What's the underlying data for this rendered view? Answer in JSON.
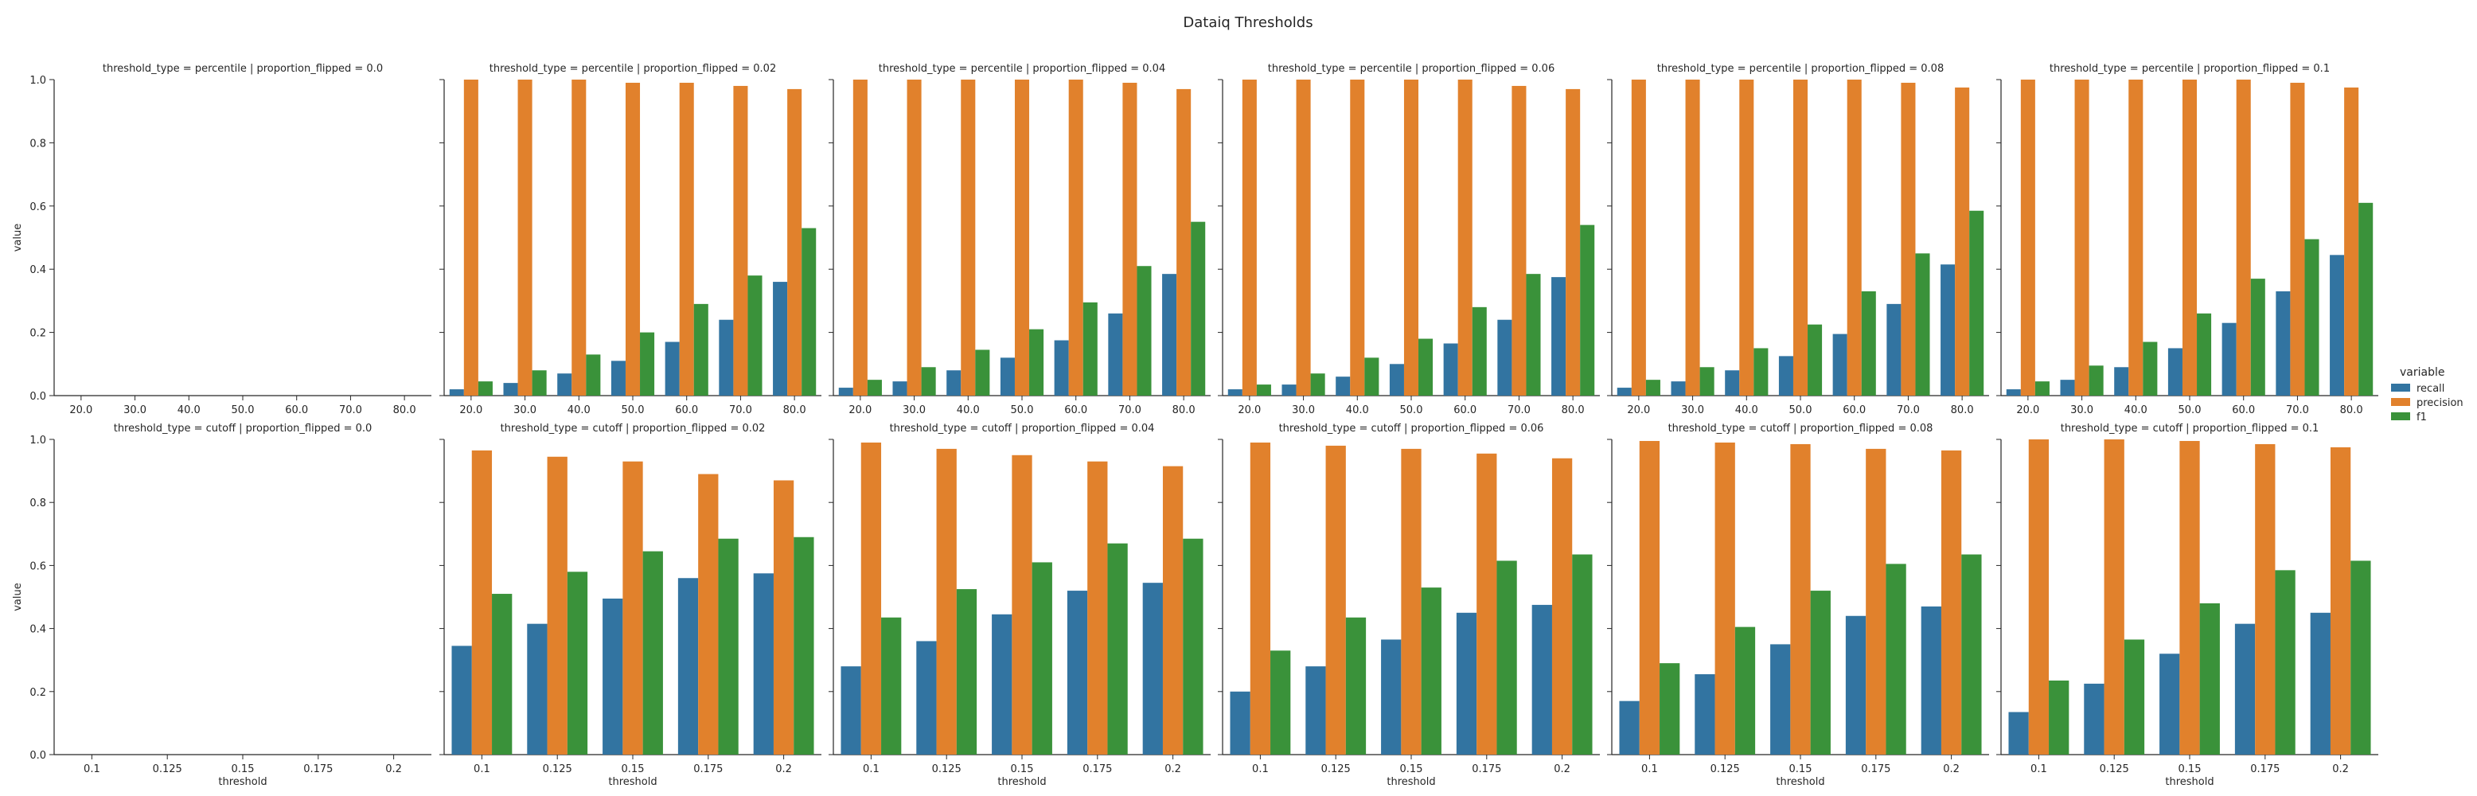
{
  "figure": {
    "title": "Dataiq Thresholds"
  },
  "legend": {
    "title": "variable",
    "placement": "right",
    "entries": [
      "recall",
      "precision",
      "f1"
    ]
  },
  "colors": {
    "recall": "#3274a1",
    "precision": "#e1812c",
    "f1": "#3a923a"
  },
  "chart_data": [
    {
      "type": "bar",
      "title": "threshold_type = percentile | proportion_flipped = 0.0",
      "xlabel": "",
      "ylabel": "value",
      "ylim": [
        0,
        1
      ],
      "categories": [
        "20.0",
        "30.0",
        "40.0",
        "50.0",
        "60.0",
        "70.0",
        "80.0"
      ],
      "series": []
    },
    {
      "type": "bar",
      "title": "threshold_type = percentile | proportion_flipped = 0.02",
      "xlabel": "",
      "ylabel": "",
      "ylim": [
        0,
        1
      ],
      "categories": [
        "20.0",
        "30.0",
        "40.0",
        "50.0",
        "60.0",
        "70.0",
        "80.0"
      ],
      "series": [
        {
          "name": "recall",
          "values": [
            0.02,
            0.04,
            0.07,
            0.11,
            0.17,
            0.24,
            0.36
          ]
        },
        {
          "name": "precision",
          "values": [
            1.0,
            1.0,
            1.0,
            0.99,
            0.99,
            0.98,
            0.97
          ]
        },
        {
          "name": "f1",
          "values": [
            0.045,
            0.08,
            0.13,
            0.2,
            0.29,
            0.38,
            0.53
          ]
        }
      ]
    },
    {
      "type": "bar",
      "title": "threshold_type = percentile | proportion_flipped = 0.04",
      "xlabel": "",
      "ylabel": "",
      "ylim": [
        0,
        1
      ],
      "categories": [
        "20.0",
        "30.0",
        "40.0",
        "50.0",
        "60.0",
        "70.0",
        "80.0"
      ],
      "series": [
        {
          "name": "recall",
          "values": [
            0.025,
            0.045,
            0.08,
            0.12,
            0.175,
            0.26,
            0.385
          ]
        },
        {
          "name": "precision",
          "values": [
            1.0,
            1.0,
            1.0,
            1.0,
            1.0,
            0.99,
            0.97
          ]
        },
        {
          "name": "f1",
          "values": [
            0.05,
            0.09,
            0.145,
            0.21,
            0.295,
            0.41,
            0.55
          ]
        }
      ]
    },
    {
      "type": "bar",
      "title": "threshold_type = percentile | proportion_flipped = 0.06",
      "xlabel": "",
      "ylabel": "",
      "ylim": [
        0,
        1
      ],
      "categories": [
        "20.0",
        "30.0",
        "40.0",
        "50.0",
        "60.0",
        "70.0",
        "80.0"
      ],
      "series": [
        {
          "name": "recall",
          "values": [
            0.02,
            0.035,
            0.06,
            0.1,
            0.165,
            0.24,
            0.375
          ]
        },
        {
          "name": "precision",
          "values": [
            1.0,
            1.0,
            1.0,
            1.0,
            1.0,
            0.98,
            0.97
          ]
        },
        {
          "name": "f1",
          "values": [
            0.035,
            0.07,
            0.12,
            0.18,
            0.28,
            0.385,
            0.54
          ]
        }
      ]
    },
    {
      "type": "bar",
      "title": "threshold_type = percentile | proportion_flipped = 0.08",
      "xlabel": "",
      "ylabel": "",
      "ylim": [
        0,
        1
      ],
      "categories": [
        "20.0",
        "30.0",
        "40.0",
        "50.0",
        "60.0",
        "70.0",
        "80.0"
      ],
      "series": [
        {
          "name": "recall",
          "values": [
            0.025,
            0.045,
            0.08,
            0.125,
            0.195,
            0.29,
            0.415
          ]
        },
        {
          "name": "precision",
          "values": [
            1.0,
            1.0,
            1.0,
            1.0,
            1.0,
            0.99,
            0.975
          ]
        },
        {
          "name": "f1",
          "values": [
            0.05,
            0.09,
            0.15,
            0.225,
            0.33,
            0.45,
            0.585
          ]
        }
      ]
    },
    {
      "type": "bar",
      "title": "threshold_type = percentile | proportion_flipped = 0.1",
      "xlabel": "",
      "ylabel": "",
      "ylim": [
        0,
        1
      ],
      "categories": [
        "20.0",
        "30.0",
        "40.0",
        "50.0",
        "60.0",
        "70.0",
        "80.0"
      ],
      "series": [
        {
          "name": "recall",
          "values": [
            0.02,
            0.05,
            0.09,
            0.15,
            0.23,
            0.33,
            0.445
          ]
        },
        {
          "name": "precision",
          "values": [
            1.0,
            1.0,
            1.0,
            1.0,
            1.0,
            0.99,
            0.975
          ]
        },
        {
          "name": "f1",
          "values": [
            0.045,
            0.095,
            0.17,
            0.26,
            0.37,
            0.495,
            0.61
          ]
        }
      ]
    },
    {
      "type": "bar",
      "title": "threshold_type = cutoff | proportion_flipped = 0.0",
      "xlabel": "threshold",
      "ylabel": "value",
      "ylim": [
        0,
        1
      ],
      "categories": [
        "0.1",
        "0.125",
        "0.15",
        "0.175",
        "0.2"
      ],
      "series": []
    },
    {
      "type": "bar",
      "title": "threshold_type = cutoff | proportion_flipped = 0.02",
      "xlabel": "threshold",
      "ylabel": "",
      "ylim": [
        0,
        1
      ],
      "categories": [
        "0.1",
        "0.125",
        "0.15",
        "0.175",
        "0.2"
      ],
      "series": [
        {
          "name": "recall",
          "values": [
            0.345,
            0.415,
            0.495,
            0.56,
            0.575
          ]
        },
        {
          "name": "precision",
          "values": [
            0.965,
            0.945,
            0.93,
            0.89,
            0.87
          ]
        },
        {
          "name": "f1",
          "values": [
            0.51,
            0.58,
            0.645,
            0.685,
            0.69
          ]
        }
      ]
    },
    {
      "type": "bar",
      "title": "threshold_type = cutoff | proportion_flipped = 0.04",
      "xlabel": "threshold",
      "ylabel": "",
      "ylim": [
        0,
        1
      ],
      "categories": [
        "0.1",
        "0.125",
        "0.15",
        "0.175",
        "0.2"
      ],
      "series": [
        {
          "name": "recall",
          "values": [
            0.28,
            0.36,
            0.445,
            0.52,
            0.545
          ]
        },
        {
          "name": "precision",
          "values": [
            0.99,
            0.97,
            0.95,
            0.93,
            0.915
          ]
        },
        {
          "name": "f1",
          "values": [
            0.435,
            0.525,
            0.61,
            0.67,
            0.685
          ]
        }
      ]
    },
    {
      "type": "bar",
      "title": "threshold_type = cutoff | proportion_flipped = 0.06",
      "xlabel": "threshold",
      "ylabel": "",
      "ylim": [
        0,
        1
      ],
      "categories": [
        "0.1",
        "0.125",
        "0.15",
        "0.175",
        "0.2"
      ],
      "series": [
        {
          "name": "recall",
          "values": [
            0.2,
            0.28,
            0.365,
            0.45,
            0.475
          ]
        },
        {
          "name": "precision",
          "values": [
            0.99,
            0.98,
            0.97,
            0.955,
            0.94
          ]
        },
        {
          "name": "f1",
          "values": [
            0.33,
            0.435,
            0.53,
            0.615,
            0.635
          ]
        }
      ]
    },
    {
      "type": "bar",
      "title": "threshold_type = cutoff | proportion_flipped = 0.08",
      "xlabel": "threshold",
      "ylabel": "",
      "ylim": [
        0,
        1
      ],
      "categories": [
        "0.1",
        "0.125",
        "0.15",
        "0.175",
        "0.2"
      ],
      "series": [
        {
          "name": "recall",
          "values": [
            0.17,
            0.255,
            0.35,
            0.44,
            0.47
          ]
        },
        {
          "name": "precision",
          "values": [
            0.995,
            0.99,
            0.985,
            0.97,
            0.965
          ]
        },
        {
          "name": "f1",
          "values": [
            0.29,
            0.405,
            0.52,
            0.605,
            0.635
          ]
        }
      ]
    },
    {
      "type": "bar",
      "title": "threshold_type = cutoff | proportion_flipped = 0.1",
      "xlabel": "threshold",
      "ylabel": "",
      "ylim": [
        0,
        1
      ],
      "categories": [
        "0.1",
        "0.125",
        "0.15",
        "0.175",
        "0.2"
      ],
      "series": [
        {
          "name": "recall",
          "values": [
            0.135,
            0.225,
            0.32,
            0.415,
            0.45
          ]
        },
        {
          "name": "precision",
          "values": [
            1.0,
            1.0,
            0.995,
            0.985,
            0.975
          ]
        },
        {
          "name": "f1",
          "values": [
            0.235,
            0.365,
            0.48,
            0.585,
            0.615
          ]
        }
      ]
    }
  ]
}
